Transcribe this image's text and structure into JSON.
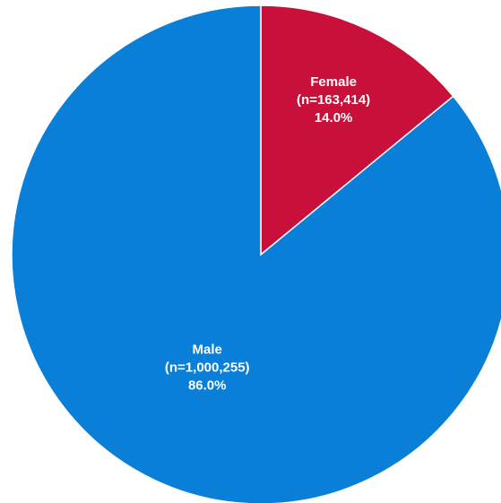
{
  "chart_data": {
    "type": "pie",
    "title": "",
    "categories": [
      "Female",
      "Male"
    ],
    "values": [
      163414,
      1000255
    ],
    "slices": [
      {
        "label": "Female",
        "count_label": "(n=163,414)",
        "percent_label": "14.0%",
        "value": 163414,
        "percent": 14.0,
        "color": "#C8103A"
      },
      {
        "label": "Male",
        "count_label": "(n=1,000,255)",
        "percent_label": "86.0%",
        "value": 1000255,
        "percent": 86.0,
        "color": "#0A7FD8"
      }
    ],
    "start_angle": "12 o'clock",
    "direction": "clockwise",
    "legend": "none",
    "slice_border_color": "#ffffff"
  }
}
